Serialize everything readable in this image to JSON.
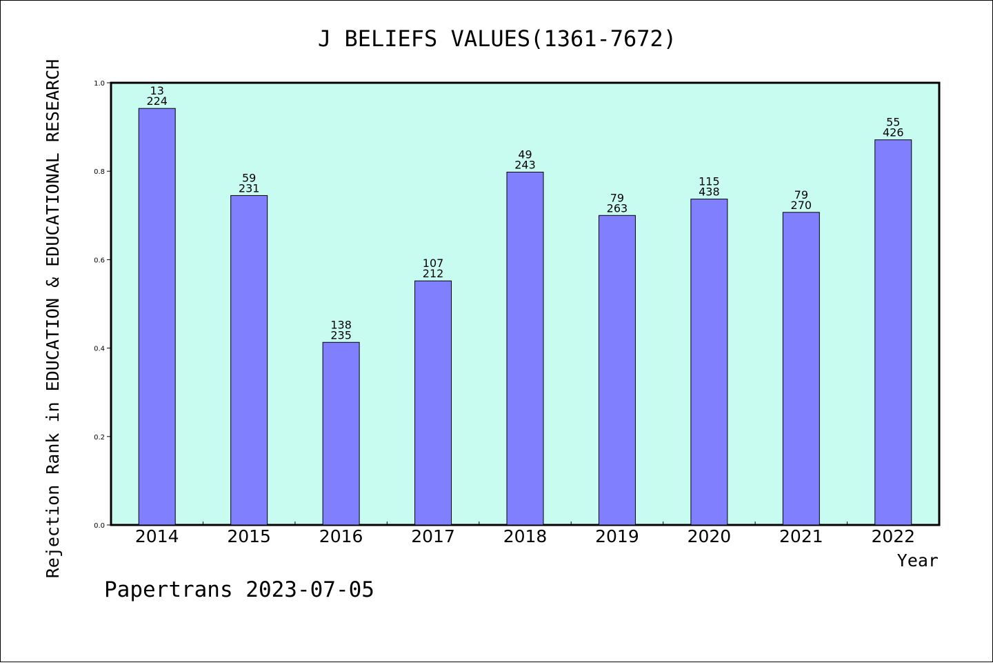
{
  "chart_data": {
    "type": "bar",
    "title": "J BELIEFS VALUES(1361-7672)",
    "xlabel": "Year",
    "ylabel": "Rejection Rank in EDUCATION & EDUCATIONAL RESEARCH",
    "categories": [
      "2014",
      "2015",
      "2016",
      "2017",
      "2018",
      "2019",
      "2020",
      "2021",
      "2022"
    ],
    "values": [
      0.942,
      0.745,
      0.413,
      0.552,
      0.798,
      0.7,
      0.737,
      0.707,
      0.871
    ],
    "labels_top": [
      "13",
      "59",
      "138",
      "107",
      "49",
      "79",
      "115",
      "79",
      "55"
    ],
    "labels_bottom": [
      "224",
      "231",
      "235",
      "212",
      "243",
      "263",
      "438",
      "270",
      "426"
    ],
    "yticks": [
      "0.0",
      "0.2",
      "0.4",
      "0.6",
      "0.8",
      "1.0"
    ],
    "ylim": [
      0,
      1.0
    ],
    "grid": false,
    "bar_color": "#8080ff",
    "plot_background": "#c8fcf0"
  },
  "footer": "Papertrans 2023-07-05"
}
